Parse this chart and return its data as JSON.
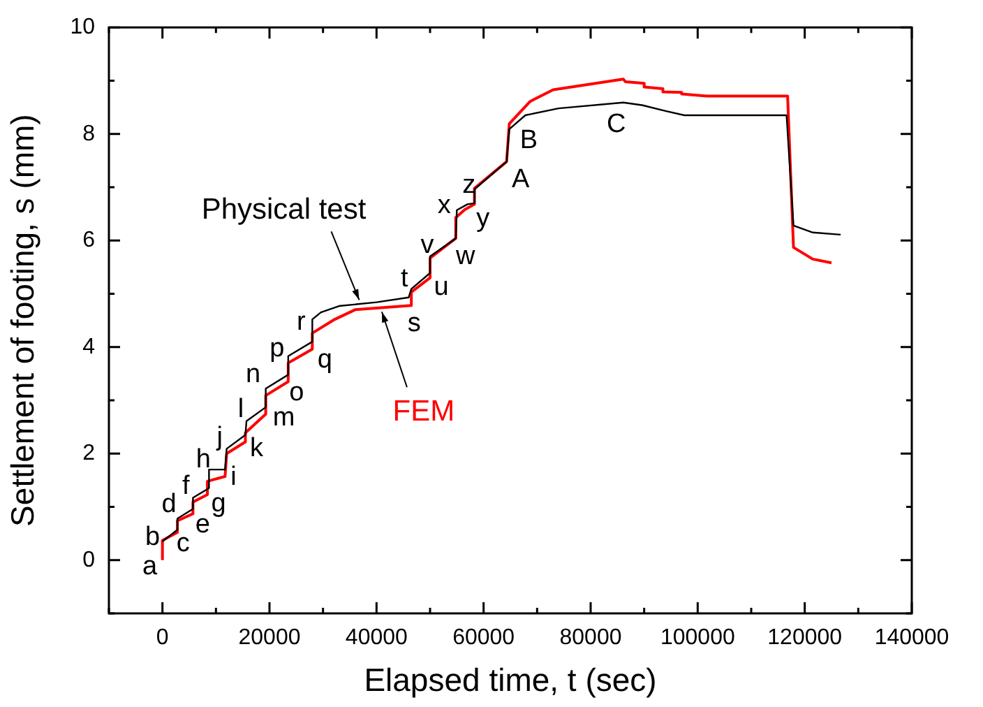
{
  "chart_data": {
    "type": "line",
    "xlabel": "Elapsed time, t (sec)",
    "ylabel": "Settlement of footing, s (mm)",
    "xlim": [
      -10000,
      140000
    ],
    "xticks": [
      0,
      20000,
      40000,
      60000,
      80000,
      100000,
      120000,
      140000
    ],
    "ylim": [
      -1,
      10
    ],
    "yticks": [
      0,
      2,
      4,
      6,
      8,
      10
    ],
    "grid": false,
    "legend": false,
    "marker": "none",
    "line_style": "solid",
    "series": [
      {
        "name": "Physical test",
        "color": "#000000",
        "x": [
          0,
          2800,
          2800,
          5700,
          5700,
          8700,
          8700,
          11700,
          12000,
          15500,
          15700,
          19300,
          19300,
          23500,
          23500,
          28000,
          28000,
          29600,
          33000,
          40000,
          46000,
          46500,
          50000,
          50000,
          54800,
          55000,
          57000,
          58300,
          58300,
          64300,
          64800,
          67800,
          74000,
          86100,
          89600,
          94000,
          97500,
          116600,
          117900,
          121500,
          126700
        ],
        "values": [
          0.35,
          0.57,
          0.78,
          0.96,
          1.17,
          1.35,
          1.7,
          1.7,
          2.09,
          2.35,
          2.61,
          2.87,
          3.22,
          3.48,
          3.83,
          4.1,
          4.52,
          4.65,
          4.77,
          4.84,
          4.93,
          5.09,
          5.39,
          5.7,
          6.04,
          6.57,
          6.68,
          6.7,
          6.96,
          7.48,
          8.09,
          8.35,
          8.48,
          8.59,
          8.54,
          8.43,
          8.35,
          8.35,
          6.28,
          6.15,
          6.11
        ]
      },
      {
        "name": "FEM",
        "color": "#ff0000",
        "x": [
          0,
          0,
          2800,
          2800,
          5700,
          5700,
          8400,
          8400,
          11700,
          12000,
          15500,
          15500,
          19300,
          19300,
          23500,
          23500,
          28000,
          28000,
          32200,
          36000,
          46500,
          46500,
          50000,
          50000,
          54800,
          54800,
          56500,
          58300,
          58300,
          64300,
          64800,
          68700,
          73000,
          86100,
          86500,
          90000,
          90000,
          93500,
          93500,
          97000,
          97000,
          101700,
          116800,
          117900,
          121500,
          125000
        ],
        "values": [
          0,
          0.37,
          0.52,
          0.74,
          0.87,
          1.09,
          1.23,
          1.48,
          1.57,
          2.0,
          2.22,
          2.39,
          2.74,
          3.09,
          3.35,
          3.7,
          3.96,
          4.26,
          4.52,
          4.7,
          4.78,
          5.03,
          5.3,
          5.67,
          6.04,
          6.43,
          6.58,
          6.68,
          6.98,
          7.48,
          8.19,
          8.61,
          8.83,
          9.03,
          8.98,
          8.95,
          8.88,
          8.85,
          8.79,
          8.78,
          8.75,
          8.71,
          8.71,
          5.87,
          5.65,
          5.58
        ]
      }
    ],
    "annotations": [
      {
        "text": "a",
        "x": 0,
        "y": 0
      },
      {
        "text": "b",
        "x": 0,
        "y": 0.37
      },
      {
        "text": "c",
        "x": 2800,
        "y": 0.52
      },
      {
        "text": "d",
        "x": 2800,
        "y": 0.78
      },
      {
        "text": "e",
        "x": 5700,
        "y": 0.87
      },
      {
        "text": "f",
        "x": 5700,
        "y": 1.17
      },
      {
        "text": "g",
        "x": 8400,
        "y": 1.23
      },
      {
        "text": "h",
        "x": 8700,
        "y": 1.7
      },
      {
        "text": "i",
        "x": 11700,
        "y": 1.57
      },
      {
        "text": "j",
        "x": 12000,
        "y": 2.09
      },
      {
        "text": "k",
        "x": 15500,
        "y": 2.22
      },
      {
        "text": "l",
        "x": 15700,
        "y": 2.61
      },
      {
        "text": "m",
        "x": 19300,
        "y": 2.74
      },
      {
        "text": "n",
        "x": 19300,
        "y": 3.22
      },
      {
        "text": "o",
        "x": 23500,
        "y": 3.35
      },
      {
        "text": "p",
        "x": 23500,
        "y": 3.83
      },
      {
        "text": "q",
        "x": 28000,
        "y": 3.96
      },
      {
        "text": "r",
        "x": 28000,
        "y": 4.52
      },
      {
        "text": "s",
        "x": 46500,
        "y": 4.78
      },
      {
        "text": "t",
        "x": 46000,
        "y": 4.93
      },
      {
        "text": "u",
        "x": 50000,
        "y": 5.3
      },
      {
        "text": "v",
        "x": 50000,
        "y": 5.7
      },
      {
        "text": "w",
        "x": 54800,
        "y": 6.04
      },
      {
        "text": "x",
        "x": 55000,
        "y": 6.57
      },
      {
        "text": "y",
        "x": 56500,
        "y": 6.58
      },
      {
        "text": "z",
        "x": 58300,
        "y": 6.98
      },
      {
        "text": "A",
        "x": 64300,
        "y": 7.48
      },
      {
        "text": "B",
        "x": 64800,
        "y": 8.19
      },
      {
        "text": "C",
        "x": 86100,
        "y": 8.59
      }
    ]
  }
}
